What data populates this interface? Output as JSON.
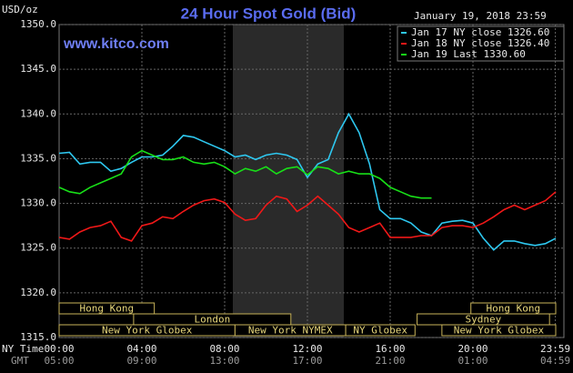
{
  "chart_data": {
    "type": "line",
    "title": "24 Hour Spot Gold (Bid)",
    "date": "January 19, 2018 23:59",
    "y_label": "USD/oz",
    "watermark": "www.kitco.com",
    "x_row_labels": [
      "NY Time",
      "GMT"
    ],
    "xlim": [
      0,
      24
    ],
    "xticks": [
      {
        "value": 0,
        "label": "00:00"
      },
      {
        "value": 4,
        "label": "04:00"
      },
      {
        "value": 8,
        "label": "08:00"
      },
      {
        "value": 12,
        "label": "12:00"
      },
      {
        "value": 16,
        "label": "16:00"
      },
      {
        "value": 20,
        "label": "20:00"
      },
      {
        "value": 23.983,
        "label": "23:59"
      }
    ],
    "xticks_gmt": [
      {
        "value": 0,
        "label": "05:00"
      },
      {
        "value": 4,
        "label": "09:00"
      },
      {
        "value": 8,
        "label": "13:00"
      },
      {
        "value": 12,
        "label": "17:00"
      },
      {
        "value": 16,
        "label": "21:00"
      },
      {
        "value": 20,
        "label": "01:00"
      },
      {
        "value": 23.983,
        "label": "04:59"
      }
    ],
    "ylim": [
      1315,
      1350
    ],
    "yticks": [
      {
        "value": 1315,
        "label": "1315.0"
      },
      {
        "value": 1320,
        "label": "1320.0"
      },
      {
        "value": 1325,
        "label": "1325.0"
      },
      {
        "value": 1330,
        "label": "1330.0"
      },
      {
        "value": 1335,
        "label": "1335.0"
      },
      {
        "value": 1340,
        "label": "1340.0"
      },
      {
        "value": 1345,
        "label": "1345.0"
      },
      {
        "value": 1350,
        "label": "1350.0"
      }
    ],
    "grid": true,
    "legend": "top-right",
    "x": [
      0,
      0.5,
      1,
      1.5,
      2,
      2.5,
      3,
      3.5,
      4,
      4.5,
      5,
      5.5,
      6,
      6.5,
      7,
      7.5,
      8,
      8.5,
      9,
      9.5,
      10,
      10.5,
      11,
      11.5,
      12,
      12.5,
      13,
      13.5,
      14,
      14.5,
      15,
      15.5,
      16,
      16.5,
      17,
      17.5,
      18,
      18.5,
      19,
      19.5,
      20,
      20.5,
      21,
      21.5,
      22,
      22.5,
      23,
      23.5,
      24
    ],
    "series": [
      {
        "name": "Jan 17 NY close 1326.60",
        "color": "#2ec8f0",
        "values": [
          1335.6,
          1335.7,
          1334.4,
          1334.6,
          1334.6,
          1333.6,
          1333.9,
          1334.6,
          1335.2,
          1335.2,
          1335.4,
          1336.4,
          1337.6,
          1337.4,
          1336.9,
          1336.4,
          1335.9,
          1335.2,
          1335.4,
          1334.9,
          1335.4,
          1335.6,
          1335.4,
          1334.9,
          1332.9,
          1334.4,
          1334.9,
          1337.9,
          1340.0,
          1337.9,
          1334.4,
          1329.3,
          1328.3,
          1328.3,
          1327.8,
          1326.8,
          1326.4,
          1327.8,
          1328.0,
          1328.1,
          1327.8,
          1326.1,
          1324.8,
          1325.8,
          1325.8,
          1325.5,
          1325.3,
          1325.5,
          1326.1
        ]
      },
      {
        "name": "Jan 18 NY close 1326.40",
        "color": "#f01818",
        "values": [
          1326.2,
          1326.0,
          1326.8,
          1327.3,
          1327.5,
          1328.0,
          1326.2,
          1325.8,
          1327.5,
          1327.8,
          1328.5,
          1328.3,
          1329.1,
          1329.8,
          1330.3,
          1330.5,
          1330.1,
          1328.8,
          1328.1,
          1328.3,
          1329.8,
          1330.8,
          1330.5,
          1329.1,
          1329.8,
          1330.8,
          1329.8,
          1328.8,
          1327.3,
          1326.8,
          1327.3,
          1327.8,
          1326.2,
          1326.2,
          1326.2,
          1326.4,
          1326.4,
          1327.3,
          1327.5,
          1327.5,
          1327.3,
          1327.8,
          1328.5,
          1329.3,
          1329.8,
          1329.3,
          1329.8,
          1330.3,
          1331.3
        ]
      },
      {
        "name": "Jan 19 Last 1330.60",
        "color": "#18e018",
        "values": [
          1331.8,
          1331.3,
          1331.1,
          1331.8,
          1332.3,
          1332.8,
          1333.3,
          1335.2,
          1335.9,
          1335.4,
          1334.9,
          1334.9,
          1335.2,
          1334.6,
          1334.4,
          1334.6,
          1334.1,
          1333.3,
          1333.9,
          1333.6,
          1334.1,
          1333.3,
          1333.9,
          1334.1,
          1333.2,
          1334.1,
          1333.9,
          1333.3,
          1333.6,
          1333.3,
          1333.3,
          1332.8,
          1331.8,
          1331.3,
          1330.8,
          1330.6,
          1330.6,
          null,
          null,
          null,
          null,
          null,
          null,
          null,
          null,
          null,
          null,
          null,
          null
        ]
      }
    ],
    "sessions": [
      [
        {
          "name": "Hong Kong",
          "start": 0,
          "end": 4.6
        },
        {
          "name": "Hong Kong",
          "start": 19.9,
          "end": 24
        }
      ],
      [
        {
          "name": "London",
          "start": 3.6,
          "end": 11.2
        },
        {
          "name": "Sydney",
          "start": 17.3,
          "end": 23.7
        }
      ],
      [
        {
          "name": "New York Globex",
          "start": 0,
          "end": 8.5
        },
        {
          "name": "New York NYMEX",
          "start": 8.5,
          "end": 13.85
        },
        {
          "name": "NY Globex",
          "start": 13.85,
          "end": 17.2
        },
        {
          "name": "New York Globex",
          "start": 18.5,
          "end": 24
        }
      ]
    ]
  }
}
